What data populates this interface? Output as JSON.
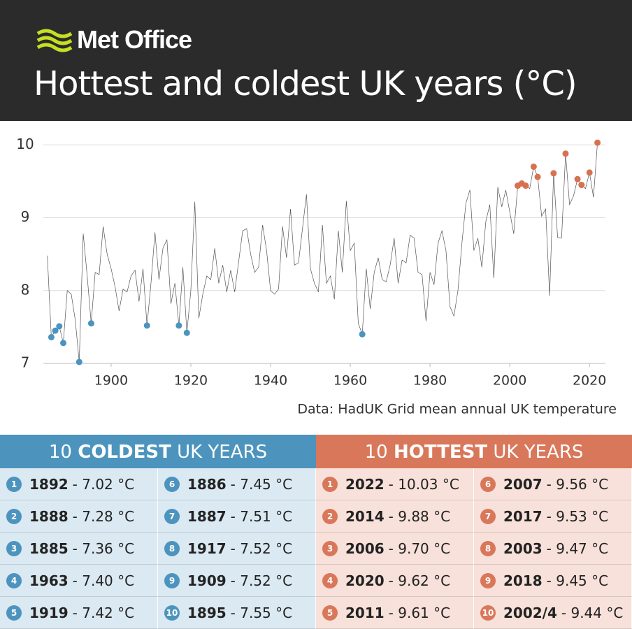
{
  "header": {
    "brand": "Met Office",
    "title": "Hottest and coldest UK years (°C)"
  },
  "chart_data": {
    "type": "line",
    "color": "#555555",
    "x": [
      1884,
      1885,
      1886,
      1887,
      1888,
      1889,
      1890,
      1891,
      1892,
      1893,
      1894,
      1895,
      1896,
      1897,
      1898,
      1899,
      1900,
      1901,
      1902,
      1903,
      1904,
      1905,
      1906,
      1907,
      1908,
      1909,
      1910,
      1911,
      1912,
      1913,
      1914,
      1915,
      1916,
      1917,
      1918,
      1919,
      1920,
      1921,
      1922,
      1923,
      1924,
      1925,
      1926,
      1927,
      1928,
      1929,
      1930,
      1931,
      1932,
      1933,
      1934,
      1935,
      1936,
      1937,
      1938,
      1939,
      1940,
      1941,
      1942,
      1943,
      1944,
      1945,
      1946,
      1947,
      1948,
      1949,
      1950,
      1951,
      1952,
      1953,
      1954,
      1955,
      1956,
      1957,
      1958,
      1959,
      1960,
      1961,
      1962,
      1963,
      1964,
      1965,
      1966,
      1967,
      1968,
      1969,
      1970,
      1971,
      1972,
      1973,
      1974,
      1975,
      1976,
      1977,
      1978,
      1979,
      1980,
      1981,
      1982,
      1983,
      1984,
      1985,
      1986,
      1987,
      1988,
      1989,
      1990,
      1991,
      1992,
      1993,
      1994,
      1995,
      1996,
      1997,
      1998,
      1999,
      2000,
      2001,
      2002,
      2003,
      2004,
      2005,
      2006,
      2007,
      2008,
      2009,
      2010,
      2011,
      2012,
      2013,
      2014,
      2015,
      2016,
      2017,
      2018,
      2019,
      2020,
      2021,
      2022
    ],
    "values": [
      8.48,
      7.36,
      7.45,
      7.51,
      7.28,
      8.0,
      7.95,
      7.6,
      7.02,
      8.78,
      8.2,
      7.55,
      8.25,
      8.22,
      8.88,
      8.5,
      8.3,
      8.05,
      7.72,
      8.02,
      7.98,
      8.2,
      8.28,
      7.85,
      8.3,
      7.52,
      8.1,
      8.8,
      8.15,
      8.58,
      8.7,
      7.82,
      8.1,
      7.52,
      8.32,
      7.42,
      8.0,
      9.22,
      7.62,
      7.95,
      8.2,
      8.15,
      8.58,
      8.1,
      8.35,
      7.98,
      8.28,
      7.98,
      8.4,
      8.82,
      8.85,
      8.5,
      8.25,
      8.32,
      8.9,
      8.55,
      8.0,
      7.95,
      8.02,
      8.88,
      8.45,
      9.12,
      8.35,
      8.38,
      8.85,
      9.32,
      8.3,
      8.1,
      7.98,
      8.9,
      8.1,
      8.2,
      7.88,
      8.82,
      8.25,
      9.23,
      8.55,
      8.65,
      7.55,
      7.4,
      8.3,
      7.75,
      8.25,
      8.45,
      8.15,
      8.12,
      8.35,
      8.72,
      8.1,
      8.42,
      8.38,
      8.76,
      8.72,
      8.25,
      8.22,
      7.58,
      8.25,
      8.08,
      8.65,
      8.82,
      8.55,
      7.78,
      7.65,
      8.0,
      8.65,
      9.2,
      9.38,
      8.55,
      8.72,
      8.32,
      8.95,
      9.18,
      8.17,
      9.42,
      9.15,
      9.38,
      9.08,
      8.78,
      9.44,
      9.47,
      9.44,
      9.4,
      9.7,
      9.56,
      9.02,
      9.12,
      7.93,
      9.61,
      8.73,
      8.72,
      9.88,
      9.18,
      9.3,
      9.53,
      9.45,
      9.4,
      9.62,
      9.28,
      10.03
    ],
    "markers": [
      {
        "color": "#4a94bf",
        "x": [
          1892,
          1888,
          1885,
          1963,
          1919,
          1886,
          1887,
          1917,
          1909,
          1895
        ]
      },
      {
        "color": "#d7714f",
        "x": [
          2022,
          2014,
          2006,
          2020,
          2011,
          2007,
          2017,
          2003,
          2018,
          2002,
          2004
        ]
      }
    ],
    "xlim": [
      1883,
      2024
    ],
    "xticks": [
      1900,
      1920,
      1940,
      1960,
      1980,
      2000,
      2020
    ],
    "ylim": [
      7,
      10.3
    ],
    "yticks": [
      7,
      8,
      9,
      10
    ],
    "grid": true,
    "source": "Data: HadUK Grid mean annual UK temperature"
  },
  "tables": [
    {
      "pre": "10 ",
      "bold": "COLDEST",
      "post": " UK YEARS",
      "color": "#4c94bd",
      "row_color": "#dbe9f2",
      "rows": [
        {
          "rank": "1",
          "year": "1892",
          "value": "- 7.02 °C"
        },
        {
          "rank": "2",
          "year": "1888",
          "value": "- 7.28 °C"
        },
        {
          "rank": "3",
          "year": "1885",
          "value": "- 7.36 °C"
        },
        {
          "rank": "4",
          "year": "1963",
          "value": "- 7.40 °C"
        },
        {
          "rank": "5",
          "year": "1919",
          "value": "- 7.42 °C"
        },
        {
          "rank": "6",
          "year": "1886",
          "value": "- 7.45 °C"
        },
        {
          "rank": "7",
          "year": "1887",
          "value": "- 7.51 °C"
        },
        {
          "rank": "8",
          "year": "1917",
          "value": "- 7.52 °C"
        },
        {
          "rank": "9",
          "year": "1909",
          "value": "- 7.52 °C"
        },
        {
          "rank": "10",
          "year": "1895",
          "value": "- 7.55 °C"
        }
      ]
    },
    {
      "pre": "10 ",
      "bold": "HOTTEST",
      "post": " UK YEARS",
      "color": "#d9775a",
      "row_color": "#f7e1da",
      "rows": [
        {
          "rank": "1",
          "year": "2022",
          "value": "- 10.03 °C"
        },
        {
          "rank": "2",
          "year": "2014",
          "value": "- 9.88 °C"
        },
        {
          "rank": "3",
          "year": "2006",
          "value": "- 9.70 °C"
        },
        {
          "rank": "4",
          "year": "2020",
          "value": "- 9.62 °C"
        },
        {
          "rank": "5",
          "year": "2011",
          "value": "- 9.61 °C"
        },
        {
          "rank": "6",
          "year": "2007",
          "value": "- 9.56 °C"
        },
        {
          "rank": "7",
          "year": "2017",
          "value": "- 9.53 °C"
        },
        {
          "rank": "8",
          "year": "2003",
          "value": "- 9.47 °C"
        },
        {
          "rank": "9",
          "year": "2018",
          "value": "- 9.45 °C"
        },
        {
          "rank": "10",
          "year": "2002/4",
          "value": "- 9.44 °C"
        }
      ]
    }
  ]
}
